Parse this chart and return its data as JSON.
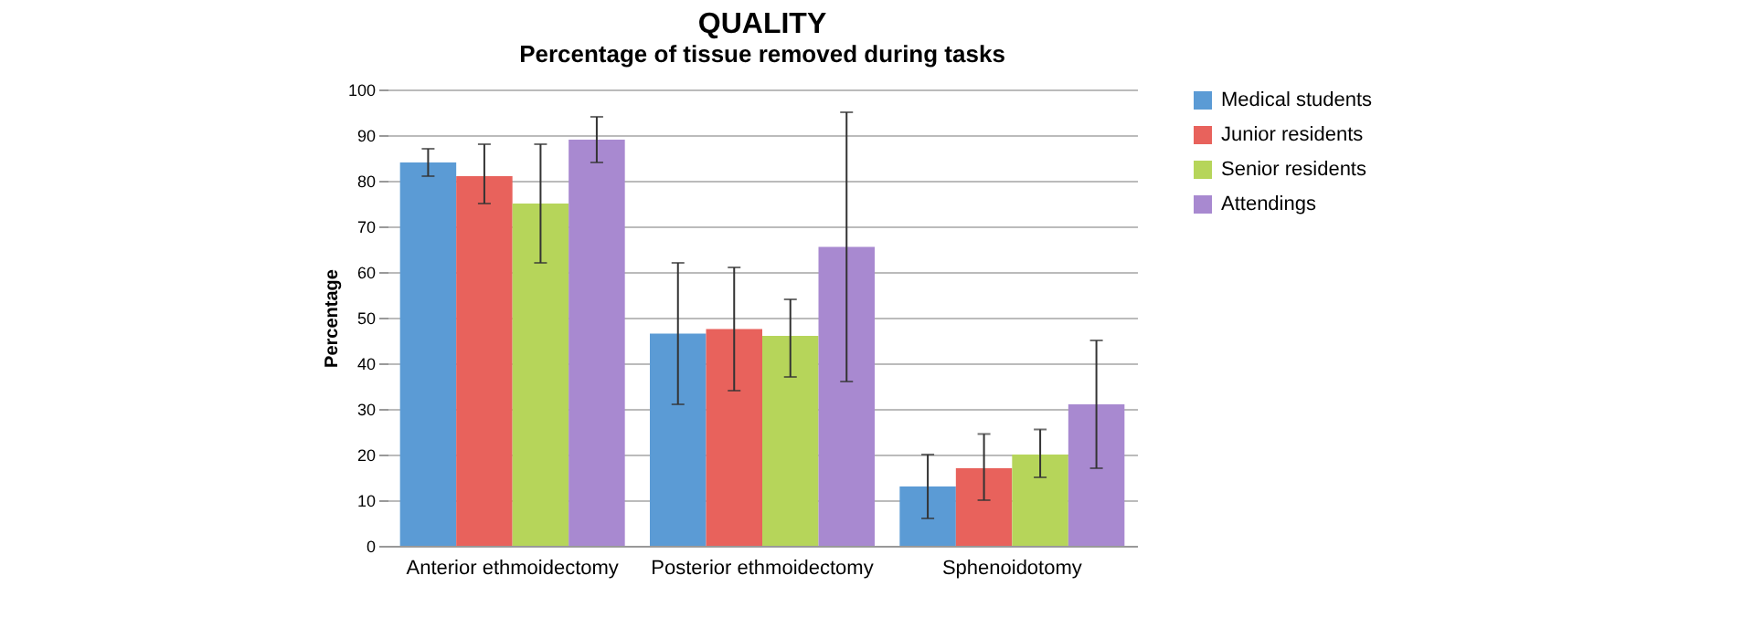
{
  "chart_data": {
    "type": "bar",
    "title": "QUALITY",
    "subtitle": "Percentage of tissue removed during tasks",
    "ylabel": "Percentage",
    "categories": [
      "Anterior ethmoidectomy",
      "Posterior ethmoidectomy",
      "Sphenoidotomy"
    ],
    "series": [
      {
        "name": "Medical students",
        "color": "#5b9bd5",
        "values": [
          84,
          46.5,
          13
        ],
        "errors": [
          [
            81,
            87
          ],
          [
            31,
            62
          ],
          [
            6,
            20
          ]
        ]
      },
      {
        "name": "Junior residents",
        "color": "#e8625c",
        "values": [
          81,
          47.5,
          17
        ],
        "errors": [
          [
            75,
            88
          ],
          [
            34,
            61
          ],
          [
            10,
            24.5
          ]
        ]
      },
      {
        "name": "Senior residents",
        "color": "#b6d55a",
        "values": [
          75,
          46,
          20
        ],
        "errors": [
          [
            62,
            88
          ],
          [
            37,
            54
          ],
          [
            15,
            25.5
          ]
        ]
      },
      {
        "name": "Attendings",
        "color": "#a889d0",
        "values": [
          89,
          65.5,
          31
        ],
        "errors": [
          [
            84,
            94
          ],
          [
            36,
            95
          ],
          [
            17,
            45
          ]
        ]
      }
    ],
    "ylim": [
      0,
      100
    ],
    "yticks": [
      0,
      10,
      20,
      30,
      40,
      50,
      60,
      70,
      80,
      90,
      100
    ],
    "grid": "y",
    "legend": "right"
  }
}
